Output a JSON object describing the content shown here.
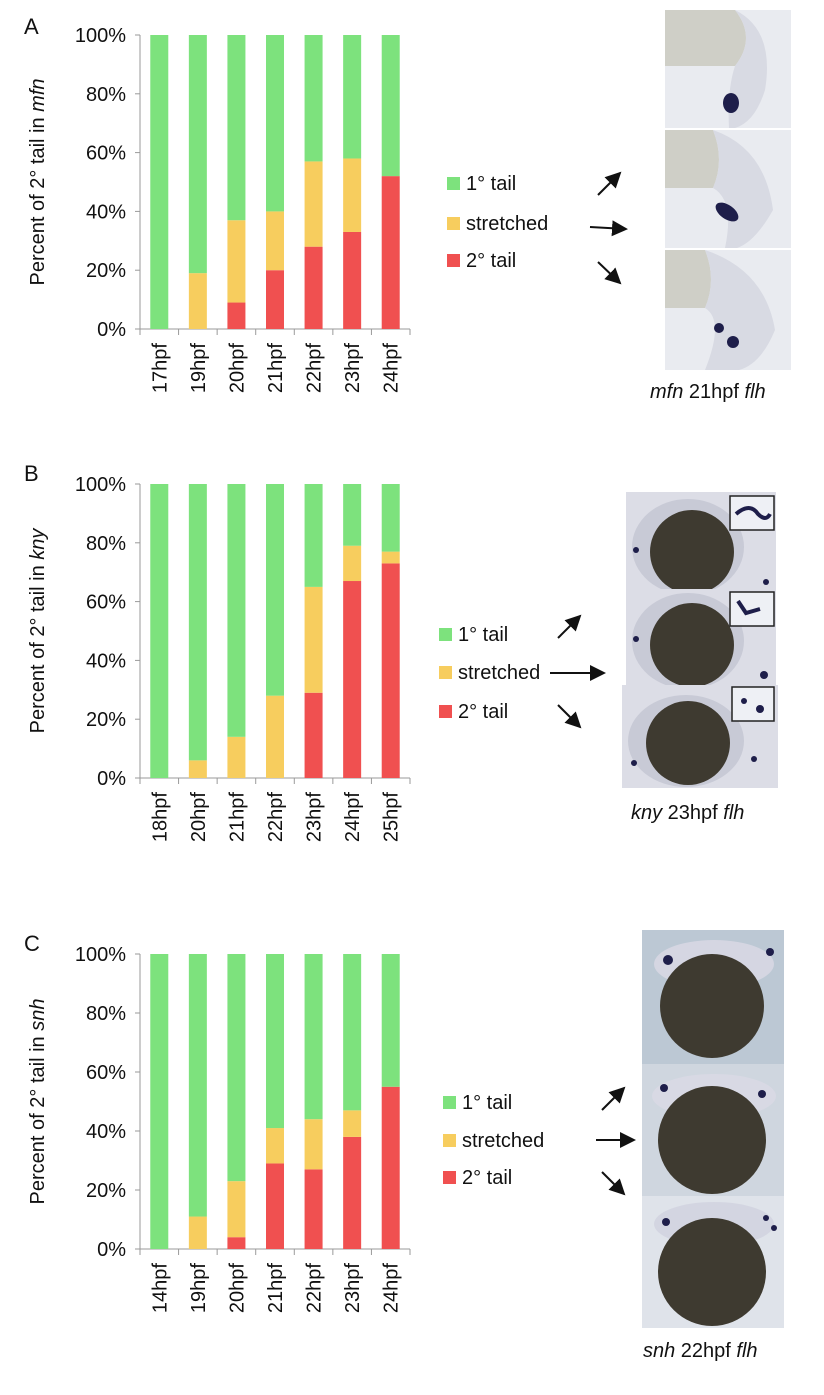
{
  "colors": {
    "primary": "#7de27d",
    "stretched": "#f7cd5e",
    "secondary": "#f05050",
    "axis": "#9a9a9a",
    "text": "#111111"
  },
  "legend": [
    {
      "key": "primary",
      "label": "1° tail"
    },
    {
      "key": "stretched",
      "label": "stretched"
    },
    {
      "key": "secondary",
      "label": "2° tail"
    }
  ],
  "panels": [
    {
      "letter": "A",
      "chart_data": {
        "type": "bar",
        "stacked": true,
        "ylabel_parts": [
          "Percent of 2° tail in ",
          "mfn"
        ],
        "ylim": [
          0,
          100
        ],
        "yticks": [
          "0%",
          "20%",
          "40%",
          "60%",
          "80%",
          "100%"
        ],
        "categories": [
          "17hpf",
          "19hpf",
          "20hpf",
          "21hpf",
          "22hpf",
          "23hpf",
          "24hpf"
        ],
        "series": [
          {
            "name": "2° tail",
            "values": [
              0,
              0,
              9,
              20,
              28,
              33,
              52
            ]
          },
          {
            "name": "stretched",
            "values": [
              0,
              19,
              28,
              20,
              29,
              25,
              0
            ]
          },
          {
            "name": "1° tail",
            "values": [
              100,
              81,
              63,
              60,
              43,
              42,
              48
            ]
          }
        ]
      },
      "caption": {
        "gene": "mfn",
        "stage": " 21hpf ",
        "probe": "flh"
      }
    },
    {
      "letter": "B",
      "chart_data": {
        "type": "bar",
        "stacked": true,
        "ylabel_parts": [
          "Percent of 2° tail in ",
          "kny"
        ],
        "ylim": [
          0,
          100
        ],
        "yticks": [
          "0%",
          "20%",
          "40%",
          "60%",
          "80%",
          "100%"
        ],
        "categories": [
          "18hpf",
          "20hpf",
          "21hpf",
          "22hpf",
          "23hpf",
          "24hpf",
          "25hpf"
        ],
        "series": [
          {
            "name": "2° tail",
            "values": [
              0,
              0,
              0,
              0,
              29,
              67,
              73
            ]
          },
          {
            "name": "stretched",
            "values": [
              0,
              6,
              14,
              28,
              36,
              12,
              4
            ]
          },
          {
            "name": "1° tail",
            "values": [
              100,
              94,
              86,
              72,
              35,
              21,
              23
            ]
          }
        ]
      },
      "caption": {
        "gene": "kny",
        "stage": " 23hpf ",
        "probe": "flh"
      }
    },
    {
      "letter": "C",
      "chart_data": {
        "type": "bar",
        "stacked": true,
        "ylabel_parts": [
          "Percent of 2° tail in ",
          "snh"
        ],
        "ylim": [
          0,
          100
        ],
        "yticks": [
          "0%",
          "20%",
          "40%",
          "60%",
          "80%",
          "100%"
        ],
        "categories": [
          "14hpf",
          "19hpf",
          "20hpf",
          "21hpf",
          "22hpf",
          "23hpf",
          "24hpf"
        ],
        "series": [
          {
            "name": "2° tail",
            "values": [
              0,
              0,
              4,
              29,
              27,
              38,
              55
            ]
          },
          {
            "name": "stretched",
            "values": [
              0,
              11,
              19,
              12,
              17,
              9,
              0
            ]
          },
          {
            "name": "1° tail",
            "values": [
              100,
              89,
              77,
              59,
              56,
              53,
              45
            ]
          }
        ]
      },
      "caption": {
        "gene": "snh",
        "stage": " 22hpf ",
        "probe": "flh"
      }
    }
  ]
}
